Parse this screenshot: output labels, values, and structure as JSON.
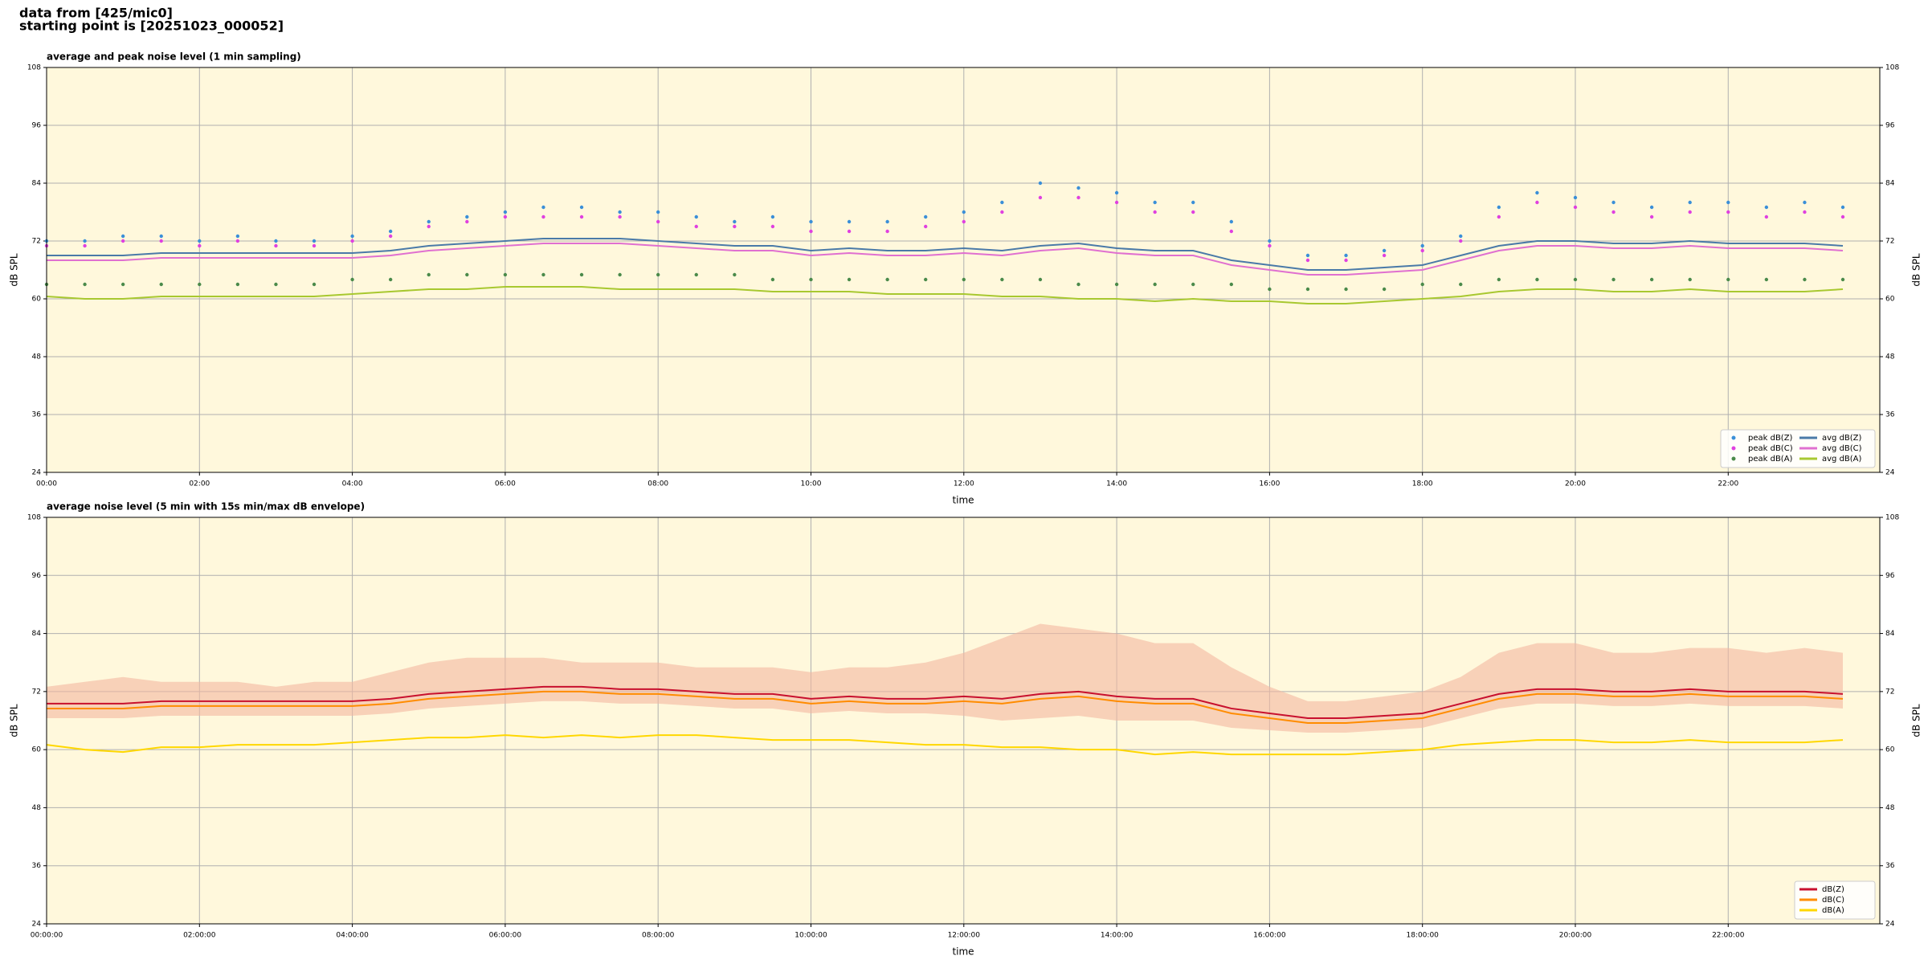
{
  "header": {
    "line1": "data from [425/mic0]",
    "line2": "starting point is [20251023_000052]"
  },
  "chart_data": [
    {
      "type": "line",
      "title": "average and peak noise level (1 min sampling)",
      "xlabel": "time",
      "ylabel": "dB SPL",
      "y2label": "dB SPL",
      "x": [
        "00:00",
        "00:30",
        "01:00",
        "01:30",
        "02:00",
        "02:30",
        "03:00",
        "03:30",
        "04:00",
        "04:30",
        "05:00",
        "05:30",
        "06:00",
        "06:30",
        "07:00",
        "07:30",
        "08:00",
        "08:30",
        "09:00",
        "09:30",
        "10:00",
        "10:30",
        "11:00",
        "11:30",
        "12:00",
        "12:30",
        "13:00",
        "13:30",
        "14:00",
        "14:30",
        "15:00",
        "15:30",
        "16:00",
        "16:30",
        "17:00",
        "17:30",
        "18:00",
        "18:30",
        "19:00",
        "19:30",
        "20:00",
        "20:30",
        "21:00",
        "21:30",
        "22:00",
        "22:30",
        "23:00",
        "23:30"
      ],
      "xlim": [
        "00:00",
        "23:59"
      ],
      "xticks": [
        "00:00",
        "02:00",
        "04:00",
        "06:00",
        "08:00",
        "10:00",
        "12:00",
        "14:00",
        "16:00",
        "18:00",
        "20:00",
        "22:00"
      ],
      "ylim": [
        24,
        108
      ],
      "yticks": [
        24,
        36,
        48,
        60,
        72,
        84,
        96,
        108
      ],
      "y2lim": [
        24,
        108
      ],
      "y2ticks": [
        24,
        36,
        48,
        60,
        72,
        84,
        96,
        108
      ],
      "grid": true,
      "legend": "lower right",
      "legend_columns": 2,
      "background": "#fff8dc",
      "series": [
        {
          "name": "peak dB(Z)",
          "mark": "dot",
          "color": "#3a8fd8",
          "values": [
            72,
            72,
            73,
            73,
            72,
            73,
            72,
            72,
            73,
            74,
            76,
            77,
            78,
            79,
            79,
            78,
            78,
            77,
            76,
            77,
            76,
            76,
            76,
            77,
            78,
            80,
            84,
            83,
            82,
            80,
            80,
            76,
            72,
            69,
            69,
            70,
            71,
            73,
            79,
            82,
            81,
            80,
            79,
            80,
            80,
            79,
            80,
            79
          ]
        },
        {
          "name": "peak dB(C)",
          "mark": "dot",
          "color": "#e040e0",
          "values": [
            71,
            71,
            72,
            72,
            71,
            72,
            71,
            71,
            72,
            73,
            75,
            76,
            77,
            77,
            77,
            77,
            76,
            75,
            75,
            75,
            74,
            74,
            74,
            75,
            76,
            78,
            81,
            81,
            80,
            78,
            78,
            74,
            71,
            68,
            68,
            69,
            70,
            72,
            77,
            80,
            79,
            78,
            77,
            78,
            78,
            77,
            78,
            77
          ]
        },
        {
          "name": "peak dB(A)",
          "mark": "dot",
          "color": "#4a8a4a",
          "values": [
            63,
            63,
            63,
            63,
            63,
            63,
            63,
            63,
            64,
            64,
            65,
            65,
            65,
            65,
            65,
            65,
            65,
            65,
            65,
            64,
            64,
            64,
            64,
            64,
            64,
            64,
            64,
            63,
            63,
            63,
            63,
            63,
            62,
            62,
            62,
            62,
            63,
            63,
            64,
            64,
            64,
            64,
            64,
            64,
            64,
            64,
            64,
            64
          ]
        },
        {
          "name": "avg dB(Z)",
          "mark": "line",
          "color": "#4a7aa8",
          "values": [
            69,
            69,
            69,
            69.5,
            69.5,
            69.5,
            69.5,
            69.5,
            69.5,
            70,
            71,
            71.5,
            72,
            72.5,
            72.5,
            72.5,
            72,
            71.5,
            71,
            71,
            70,
            70.5,
            70,
            70,
            70.5,
            70,
            71,
            71.5,
            70.5,
            70,
            70,
            68,
            67,
            66,
            66,
            66.5,
            67,
            69,
            71,
            72,
            72,
            71.5,
            71.5,
            72,
            71.5,
            71.5,
            71.5,
            71
          ]
        },
        {
          "name": "avg dB(C)",
          "mark": "line",
          "color": "#e070d0",
          "values": [
            68,
            68,
            68,
            68.5,
            68.5,
            68.5,
            68.5,
            68.5,
            68.5,
            69,
            70,
            70.5,
            71,
            71.5,
            71.5,
            71.5,
            71,
            70.5,
            70,
            70,
            69,
            69.5,
            69,
            69,
            69.5,
            69,
            70,
            70.5,
            69.5,
            69,
            69,
            67,
            66,
            65,
            65,
            65.5,
            66,
            68,
            70,
            71,
            71,
            70.5,
            70.5,
            71,
            70.5,
            70.5,
            70.5,
            70
          ]
        },
        {
          "name": "avg dB(A)",
          "mark": "line",
          "color": "#a8c830",
          "values": [
            60.5,
            60,
            60,
            60.5,
            60.5,
            60.5,
            60.5,
            60.5,
            61,
            61.5,
            62,
            62,
            62.5,
            62.5,
            62.5,
            62,
            62,
            62,
            62,
            61.5,
            61.5,
            61.5,
            61,
            61,
            61,
            60.5,
            60.5,
            60,
            60,
            59.5,
            60,
            59.5,
            59.5,
            59,
            59,
            59.5,
            60,
            60.5,
            61.5,
            62,
            62,
            61.5,
            61.5,
            62,
            61.5,
            61.5,
            61.5,
            62
          ]
        }
      ]
    },
    {
      "type": "line",
      "title": "average noise level (5 min with 15s min/max dB envelope)",
      "xlabel": "time",
      "ylabel": "dB SPL",
      "y2label": "dB SPL",
      "x": [
        "00:00:00",
        "00:30:00",
        "01:00:00",
        "01:30:00",
        "02:00:00",
        "02:30:00",
        "03:00:00",
        "03:30:00",
        "04:00:00",
        "04:30:00",
        "05:00:00",
        "05:30:00",
        "06:00:00",
        "06:30:00",
        "07:00:00",
        "07:30:00",
        "08:00:00",
        "08:30:00",
        "09:00:00",
        "09:30:00",
        "10:00:00",
        "10:30:00",
        "11:00:00",
        "11:30:00",
        "12:00:00",
        "12:30:00",
        "13:00:00",
        "13:30:00",
        "14:00:00",
        "14:30:00",
        "15:00:00",
        "15:30:00",
        "16:00:00",
        "16:30:00",
        "17:00:00",
        "17:30:00",
        "18:00:00",
        "18:30:00",
        "19:00:00",
        "19:30:00",
        "20:00:00",
        "20:30:00",
        "21:00:00",
        "21:30:00",
        "22:00:00",
        "22:30:00",
        "23:00:00",
        "23:30:00"
      ],
      "xlim": [
        "00:00:00",
        "23:59:00"
      ],
      "xticks": [
        "00:00:00",
        "02:00:00",
        "04:00:00",
        "06:00:00",
        "08:00:00",
        "10:00:00",
        "12:00:00",
        "14:00:00",
        "16:00:00",
        "18:00:00",
        "20:00:00",
        "22:00:00"
      ],
      "ylim": [
        24,
        108
      ],
      "yticks": [
        24,
        36,
        48,
        60,
        72,
        84,
        96,
        108
      ],
      "y2lim": [
        24,
        108
      ],
      "y2ticks": [
        24,
        36,
        48,
        60,
        72,
        84,
        96,
        108
      ],
      "grid": true,
      "legend": "lower right",
      "legend_columns": 1,
      "background": "#fff8dc",
      "envelope": {
        "color": "#f4b8a0",
        "high": [
          73,
          74,
          75,
          74,
          74,
          74,
          73,
          74,
          74,
          76,
          78,
          79,
          79,
          79,
          78,
          78,
          78,
          77,
          77,
          77,
          76,
          77,
          77,
          78,
          80,
          83,
          86,
          85,
          84,
          82,
          82,
          77,
          73,
          70,
          70,
          71,
          72,
          75,
          80,
          82,
          82,
          80,
          80,
          81,
          81,
          80,
          81,
          80
        ],
        "low": [
          66.5,
          66.5,
          66.5,
          67,
          67,
          67,
          67,
          67,
          67,
          67.5,
          68.5,
          69,
          69.5,
          70,
          70,
          69.5,
          69.5,
          69,
          68.5,
          68.5,
          67.5,
          68,
          67.5,
          67.5,
          67,
          66,
          66.5,
          67,
          66,
          66,
          66,
          64.5,
          64,
          63.5,
          63.5,
          64,
          64.5,
          66.5,
          68.5,
          69.5,
          69.5,
          69,
          69,
          69.5,
          69,
          69,
          69,
          68.5
        ]
      },
      "series": [
        {
          "name": "dB(Z)",
          "mark": "line",
          "color": "#c8102e",
          "values": [
            69.5,
            69.5,
            69.5,
            70,
            70,
            70,
            70,
            70,
            70,
            70.5,
            71.5,
            72,
            72.5,
            73,
            73,
            72.5,
            72.5,
            72,
            71.5,
            71.5,
            70.5,
            71,
            70.5,
            70.5,
            71,
            70.5,
            71.5,
            72,
            71,
            70.5,
            70.5,
            68.5,
            67.5,
            66.5,
            66.5,
            67,
            67.5,
            69.5,
            71.5,
            72.5,
            72.5,
            72,
            72,
            72.5,
            72,
            72,
            72,
            71.5
          ]
        },
        {
          "name": "dB(C)",
          "mark": "line",
          "color": "#ff8c00",
          "values": [
            68.5,
            68.5,
            68.5,
            69,
            69,
            69,
            69,
            69,
            69,
            69.5,
            70.5,
            71,
            71.5,
            72,
            72,
            71.5,
            71.5,
            71,
            70.5,
            70.5,
            69.5,
            70,
            69.5,
            69.5,
            70,
            69.5,
            70.5,
            71,
            70,
            69.5,
            69.5,
            67.5,
            66.5,
            65.5,
            65.5,
            66,
            66.5,
            68.5,
            70.5,
            71.5,
            71.5,
            71,
            71,
            71.5,
            71,
            71,
            71,
            70.5
          ]
        },
        {
          "name": "dB(A)",
          "mark": "line",
          "color": "#ffd700",
          "values": [
            61,
            60,
            59.5,
            60.5,
            60.5,
            61,
            61,
            61,
            61.5,
            62,
            62.5,
            62.5,
            63,
            62.5,
            63,
            62.5,
            63,
            63,
            62.5,
            62,
            62,
            62,
            61.5,
            61,
            61,
            60.5,
            60.5,
            60,
            60,
            59,
            59.5,
            59,
            59,
            59,
            59,
            59.5,
            60,
            61,
            61.5,
            62,
            62,
            61.5,
            61.5,
            62,
            61.5,
            61.5,
            61.5,
            62
          ]
        }
      ]
    }
  ]
}
